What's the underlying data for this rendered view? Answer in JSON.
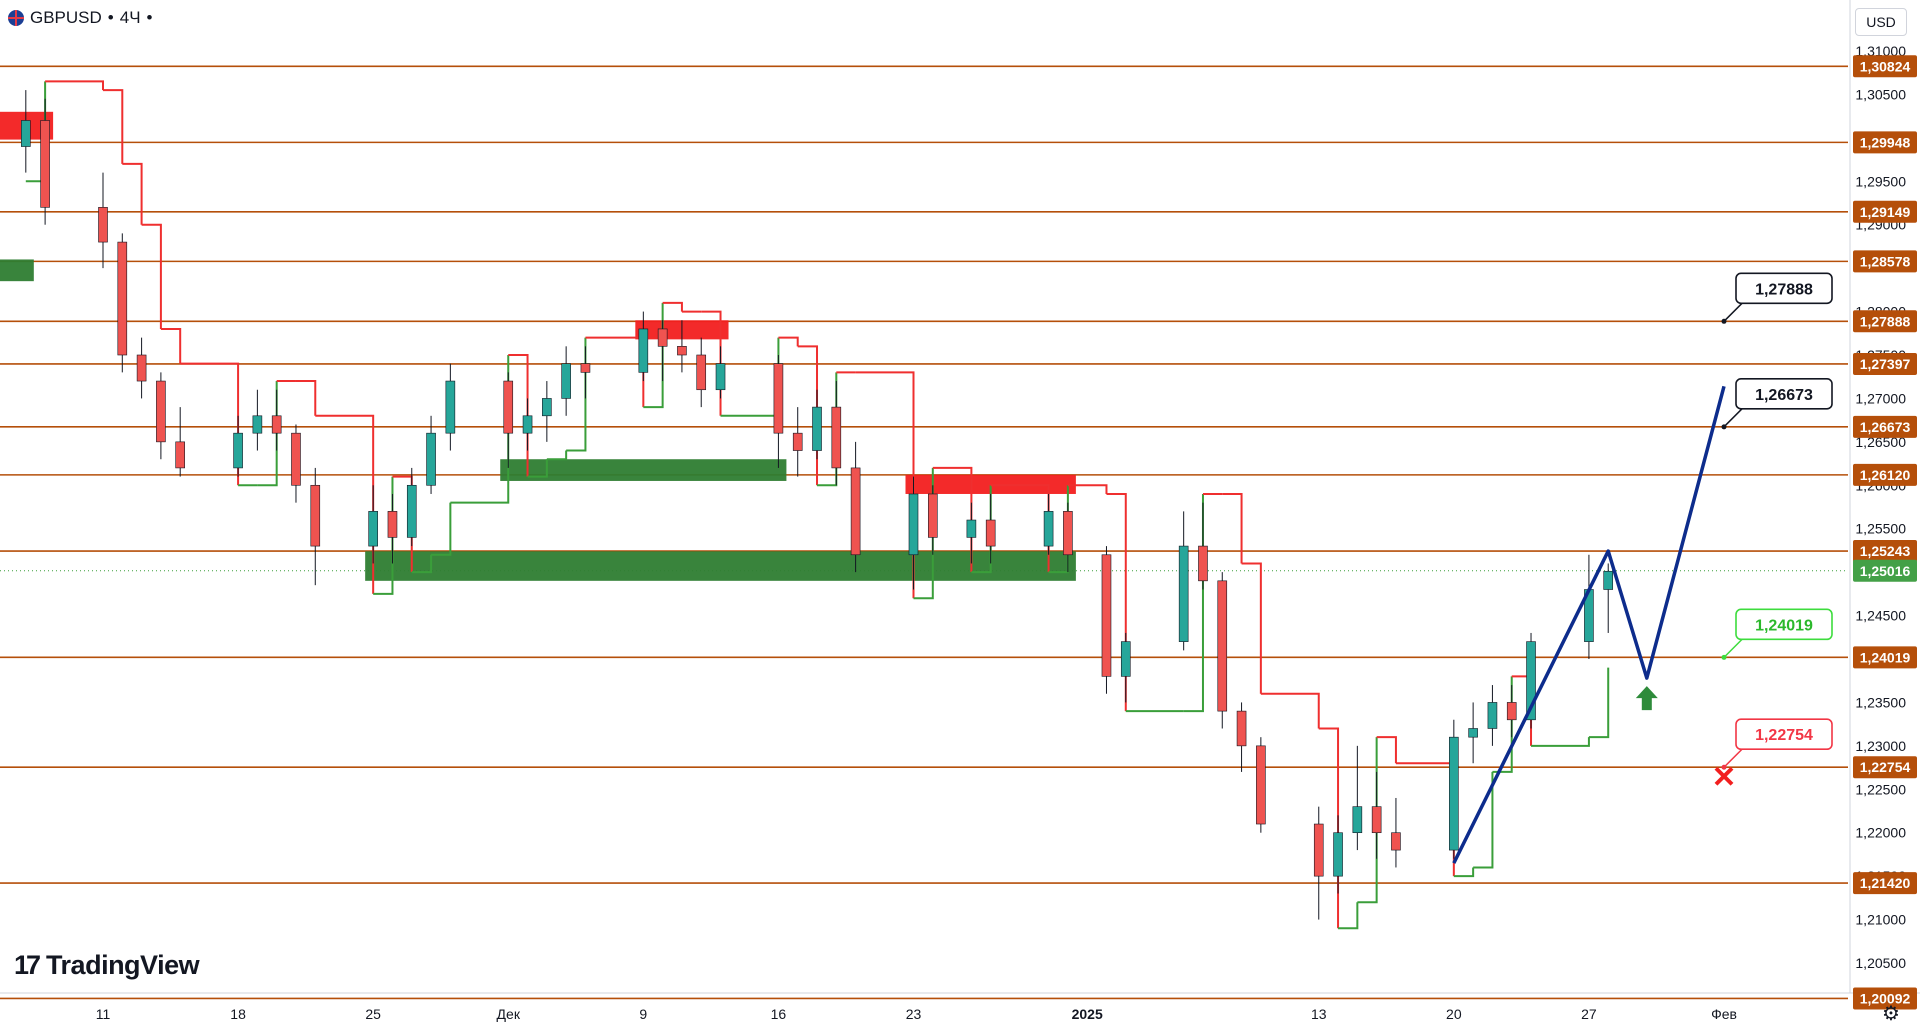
{
  "header": {
    "symbol": "GBPUSD",
    "interval": "4Ч",
    "currency": "USD"
  },
  "brand": {
    "name": "TradingView"
  },
  "colors": {
    "level": "#b54f0a",
    "bear": "#ef2f2f",
    "bull": "#3a9e3a",
    "projection": "#0d2c8c"
  },
  "chart_data": {
    "type": "candlestick",
    "y_axis": {
      "ticks": [
        "1,31000",
        "1,30500",
        "1,29500",
        "1,29000",
        "1,28000",
        "1,27500",
        "1,27000",
        "1,26500",
        "1,26000",
        "1,25500",
        "1,24500",
        "1,23500",
        "1,23000",
        "1,22500",
        "1,22000",
        "1,21500",
        "1,21000",
        "1,20500"
      ],
      "levels": [
        "1,30824",
        "1,29948",
        "1,29149",
        "1,28578",
        "1,27888",
        "1,27397",
        "1,26673",
        "1,26120",
        "1,25243",
        "1,24019",
        "1,22754",
        "1,21420",
        "1,20092"
      ],
      "current": "1,25016"
    },
    "x_axis": {
      "ticks": [
        "11",
        "18",
        "25",
        "Дек",
        "9",
        "16",
        "23",
        "2025",
        "13",
        "20",
        "27",
        "Фев"
      ]
    },
    "candles": [
      {
        "d": "2024-11-07",
        "o": 1.299,
        "h": 1.3055,
        "l": 1.296,
        "c": 1.302
      },
      {
        "d": "2024-11-08",
        "o": 1.302,
        "h": 1.3045,
        "l": 1.29,
        "c": 1.292
      },
      {
        "d": "2024-11-11",
        "o": 1.292,
        "h": 1.296,
        "l": 1.285,
        "c": 1.288
      },
      {
        "d": "2024-11-12",
        "o": 1.288,
        "h": 1.289,
        "l": 1.273,
        "c": 1.275
      },
      {
        "d": "2024-11-13",
        "o": 1.275,
        "h": 1.277,
        "l": 1.27,
        "c": 1.272
      },
      {
        "d": "2024-11-14",
        "o": 1.272,
        "h": 1.273,
        "l": 1.263,
        "c": 1.265
      },
      {
        "d": "2024-11-15",
        "o": 1.265,
        "h": 1.269,
        "l": 1.261,
        "c": 1.262
      },
      {
        "d": "2024-11-18",
        "o": 1.262,
        "h": 1.268,
        "l": 1.261,
        "c": 1.266
      },
      {
        "d": "2024-11-19",
        "o": 1.266,
        "h": 1.271,
        "l": 1.264,
        "c": 1.268
      },
      {
        "d": "2024-11-20",
        "o": 1.268,
        "h": 1.271,
        "l": 1.264,
        "c": 1.266
      },
      {
        "d": "2024-11-21",
        "o": 1.266,
        "h": 1.267,
        "l": 1.258,
        "c": 1.26
      },
      {
        "d": "2024-11-22",
        "o": 1.26,
        "h": 1.262,
        "l": 1.2485,
        "c": 1.253
      },
      {
        "d": "2024-11-25",
        "o": 1.253,
        "h": 1.26,
        "l": 1.251,
        "c": 1.257
      },
      {
        "d": "2024-11-26",
        "o": 1.257,
        "h": 1.259,
        "l": 1.251,
        "c": 1.254
      },
      {
        "d": "2024-11-27",
        "o": 1.254,
        "h": 1.262,
        "l": 1.253,
        "c": 1.26
      },
      {
        "d": "2024-11-28",
        "o": 1.26,
        "h": 1.268,
        "l": 1.259,
        "c": 1.266
      },
      {
        "d": "2024-11-29",
        "o": 1.266,
        "h": 1.274,
        "l": 1.264,
        "c": 1.272
      },
      {
        "d": "2024-12-02",
        "o": 1.272,
        "h": 1.273,
        "l": 1.262,
        "c": 1.266
      },
      {
        "d": "2024-12-03",
        "o": 1.266,
        "h": 1.27,
        "l": 1.264,
        "c": 1.268
      },
      {
        "d": "2024-12-04",
        "o": 1.268,
        "h": 1.272,
        "l": 1.265,
        "c": 1.27
      },
      {
        "d": "2024-12-05",
        "o": 1.27,
        "h": 1.276,
        "l": 1.268,
        "c": 1.274
      },
      {
        "d": "2024-12-06",
        "o": 1.274,
        "h": 1.276,
        "l": 1.27,
        "c": 1.273
      },
      {
        "d": "2024-12-09",
        "o": 1.273,
        "h": 1.28,
        "l": 1.272,
        "c": 1.278
      },
      {
        "d": "2024-12-10",
        "o": 1.278,
        "h": 1.279,
        "l": 1.272,
        "c": 1.276
      },
      {
        "d": "2024-12-11",
        "o": 1.276,
        "h": 1.279,
        "l": 1.273,
        "c": 1.275
      },
      {
        "d": "2024-12-12",
        "o": 1.275,
        "h": 1.277,
        "l": 1.269,
        "c": 1.271
      },
      {
        "d": "2024-12-13",
        "o": 1.271,
        "h": 1.276,
        "l": 1.27,
        "c": 1.274
      },
      {
        "d": "2024-12-16",
        "o": 1.274,
        "h": 1.275,
        "l": 1.262,
        "c": 1.266
      },
      {
        "d": "2024-12-17",
        "o": 1.266,
        "h": 1.269,
        "l": 1.261,
        "c": 1.264
      },
      {
        "d": "2024-12-18",
        "o": 1.264,
        "h": 1.271,
        "l": 1.263,
        "c": 1.269
      },
      {
        "d": "2024-12-19",
        "o": 1.269,
        "h": 1.272,
        "l": 1.26,
        "c": 1.262
      },
      {
        "d": "2024-12-20",
        "o": 1.262,
        "h": 1.265,
        "l": 1.25,
        "c": 1.252
      },
      {
        "d": "2024-12-23",
        "o": 1.252,
        "h": 1.261,
        "l": 1.248,
        "c": 1.259
      },
      {
        "d": "2024-12-24",
        "o": 1.259,
        "h": 1.26,
        "l": 1.252,
        "c": 1.254
      },
      {
        "d": "2024-12-26",
        "o": 1.254,
        "h": 1.258,
        "l": 1.251,
        "c": 1.256
      },
      {
        "d": "2024-12-27",
        "o": 1.256,
        "h": 1.259,
        "l": 1.251,
        "c": 1.253
      },
      {
        "d": "2024-12-30",
        "o": 1.253,
        "h": 1.259,
        "l": 1.252,
        "c": 1.257
      },
      {
        "d": "2024-12-31",
        "o": 1.257,
        "h": 1.258,
        "l": 1.25,
        "c": 1.252
      },
      {
        "d": "2025-01-02",
        "o": 1.252,
        "h": 1.253,
        "l": 1.236,
        "c": 1.238
      },
      {
        "d": "2025-01-03",
        "o": 1.238,
        "h": 1.243,
        "l": 1.235,
        "c": 1.242
      },
      {
        "d": "2025-01-06",
        "o": 1.242,
        "h": 1.257,
        "l": 1.241,
        "c": 1.253
      },
      {
        "d": "2025-01-07",
        "o": 1.253,
        "h": 1.258,
        "l": 1.248,
        "c": 1.249
      },
      {
        "d": "2025-01-08",
        "o": 1.249,
        "h": 1.25,
        "l": 1.232,
        "c": 1.234
      },
      {
        "d": "2025-01-09",
        "o": 1.234,
        "h": 1.235,
        "l": 1.227,
        "c": 1.23
      },
      {
        "d": "2025-01-10",
        "o": 1.23,
        "h": 1.231,
        "l": 1.22,
        "c": 1.221
      },
      {
        "d": "2025-01-13",
        "o": 1.221,
        "h": 1.223,
        "l": 1.21,
        "c": 1.215
      },
      {
        "d": "2025-01-14",
        "o": 1.215,
        "h": 1.222,
        "l": 1.213,
        "c": 1.22
      },
      {
        "d": "2025-01-15",
        "o": 1.22,
        "h": 1.23,
        "l": 1.218,
        "c": 1.223
      },
      {
        "d": "2025-01-16",
        "o": 1.223,
        "h": 1.227,
        "l": 1.217,
        "c": 1.22
      },
      {
        "d": "2025-01-17",
        "o": 1.22,
        "h": 1.224,
        "l": 1.216,
        "c": 1.218
      },
      {
        "d": "2025-01-20",
        "o": 1.218,
        "h": 1.233,
        "l": 1.217,
        "c": 1.231
      },
      {
        "d": "2025-01-21",
        "o": 1.231,
        "h": 1.235,
        "l": 1.228,
        "c": 1.232
      },
      {
        "d": "2025-01-22",
        "o": 1.232,
        "h": 1.237,
        "l": 1.23,
        "c": 1.235
      },
      {
        "d": "2025-01-23",
        "o": 1.235,
        "h": 1.237,
        "l": 1.231,
        "c": 1.233
      },
      {
        "d": "2025-01-24",
        "o": 1.233,
        "h": 1.243,
        "l": 1.232,
        "c": 1.242
      },
      {
        "d": "2025-01-27",
        "o": 1.242,
        "h": 1.252,
        "l": 1.24,
        "c": 1.248
      },
      {
        "d": "2025-01-28",
        "o": 1.248,
        "h": 1.251,
        "l": 1.243,
        "c": 1.2501
      }
    ],
    "zones": [
      {
        "kind": "supply",
        "from": "2024-11-06",
        "to": "2024-11-08",
        "top": 1.303,
        "bottom": 1.2998
      },
      {
        "kind": "demand",
        "from": "2024-11-06",
        "to": "2024-11-07",
        "top": 1.286,
        "bottom": 1.2835
      },
      {
        "kind": "supply",
        "from": "2024-12-09",
        "to": "2024-12-13",
        "top": 1.279,
        "bottom": 1.2768
      },
      {
        "kind": "demand",
        "from": "2024-12-02",
        "to": "2024-12-16",
        "top": 1.263,
        "bottom": 1.2605
      },
      {
        "kind": "supply",
        "from": "2024-12-23",
        "to": "2024-12-31",
        "top": 1.2612,
        "bottom": 1.259
      },
      {
        "kind": "demand",
        "from": "2024-11-25",
        "to": "2024-12-31",
        "top": 1.2524,
        "bottom": 1.249
      }
    ],
    "projection": {
      "x": [
        "2025-01-20",
        "2025-01-28",
        "2025-01-30",
        "2025-02-03"
      ],
      "y": [
        1.2165,
        1.25243,
        1.2378,
        1.2714
      ]
    },
    "targets": [
      {
        "label": "1,27888",
        "date": "2025-02-03",
        "value": 1.27888,
        "style": "target"
      },
      {
        "label": "1,26673",
        "date": "2025-02-03",
        "value": 1.26673,
        "style": "target"
      },
      {
        "label": "1,24019",
        "date": "2025-02-03",
        "value": 1.24019,
        "style": "entry"
      },
      {
        "label": "1,22754",
        "date": "2025-02-03",
        "value": 1.22754,
        "style": "stop"
      }
    ],
    "markers": [
      {
        "kind": "buy-arrow",
        "date": "2025-01-30",
        "value": 1.2355
      },
      {
        "kind": "stop-cross",
        "date": "2025-02-03",
        "value": 1.2265
      }
    ]
  }
}
